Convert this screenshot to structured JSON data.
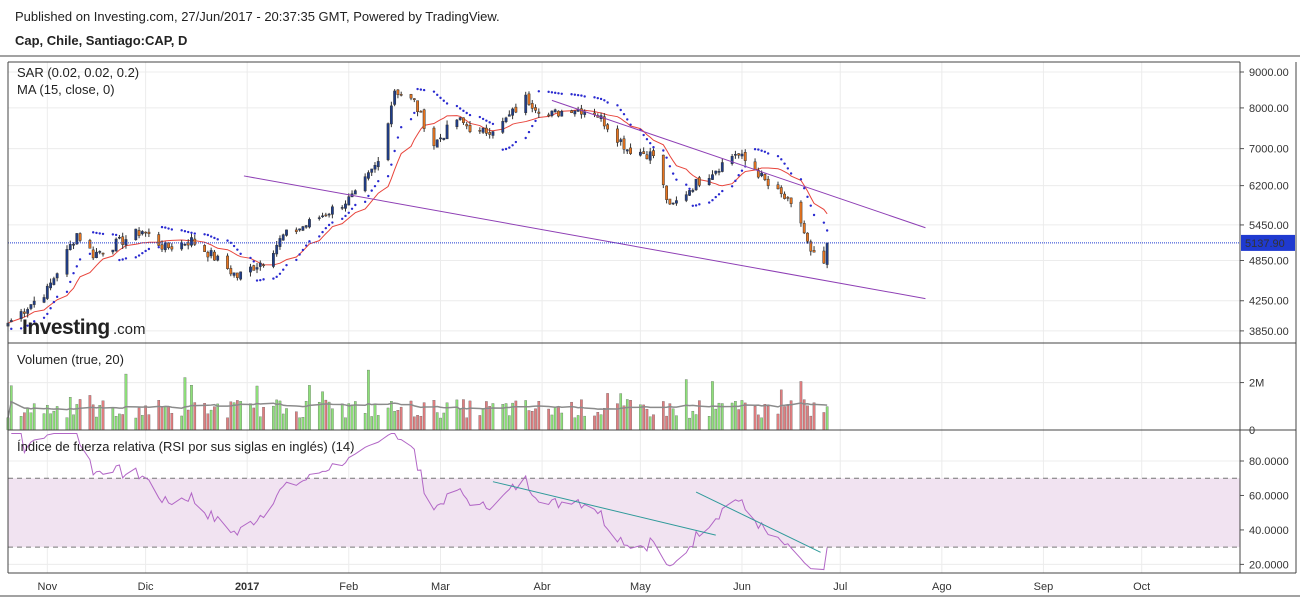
{
  "header": {
    "published": "Published on Investing.com, 27/Jun/2017 - 20:37:35 GMT, Powered by TradingView.",
    "symbol": "Cap, Chile, Santiago:CAP, D"
  },
  "watermark": {
    "brand": "Investing",
    "suffix": ".com"
  },
  "colors": {
    "up": "#1f3d8a",
    "down": "#e8741e",
    "sar": "#2a2ad0",
    "ma": "#e8453c",
    "channel": "#8e3fb5",
    "vol_up": "#8ee07a",
    "vol_down": "#e07e80",
    "vol_ma": "#8b8b8b",
    "rsi": "#b267c6",
    "rsi_band": "#f1e3f1",
    "trend": "#2f9a9a",
    "last_price_bg": "#1f3ad0"
  },
  "chart_data": [
    {
      "type": "candlestick",
      "title": "Cap, Chile, Santiago:CAP, D",
      "indicators": [
        "SAR (0.02, 0.02, 0.2)",
        "MA (15, close, 0)"
      ],
      "ylim": [
        3700,
        9300
      ],
      "scale": "log",
      "y_ticks": [
        {
          "v": 9000,
          "t": "9000.00"
        },
        {
          "v": 8000,
          "t": "8000.00"
        },
        {
          "v": 7000,
          "t": "7000.00"
        },
        {
          "v": 6200,
          "t": "6200.00"
        },
        {
          "v": 5450,
          "t": "5450.00"
        },
        {
          "v": 4850,
          "t": "4850.00"
        },
        {
          "v": 4250,
          "t": "4250.00"
        },
        {
          "v": 3850,
          "t": "3850.00"
        }
      ],
      "last_price": {
        "value": 5137.9,
        "label": "5137.90"
      },
      "x_axis": {
        "start": "2016-10-20",
        "end": "2017-10-31",
        "ticks": [
          {
            "date": "2016-11-01",
            "label": "Nov"
          },
          {
            "date": "2016-12-01",
            "label": "Dic"
          },
          {
            "date": "2017-01-01",
            "label": "2017"
          },
          {
            "date": "2017-02-01",
            "label": "Feb"
          },
          {
            "date": "2017-03-01",
            "label": "Mar"
          },
          {
            "date": "2017-04-01",
            "label": "Abr"
          },
          {
            "date": "2017-05-01",
            "label": "May"
          },
          {
            "date": "2017-06-01",
            "label": "Jun"
          },
          {
            "date": "2017-07-01",
            "label": "Jul"
          },
          {
            "date": "2017-08-01",
            "label": "Ago"
          },
          {
            "date": "2017-09-01",
            "label": "Sep"
          },
          {
            "date": "2017-10-01",
            "label": "Oct"
          }
        ]
      },
      "price_anchors": [
        {
          "date": "2016-10-20",
          "close": 3950
        },
        {
          "date": "2016-11-01",
          "close": 4400
        },
        {
          "date": "2016-11-10",
          "close": 5300
        },
        {
          "date": "2016-11-15",
          "close": 4950
        },
        {
          "date": "2016-11-23",
          "close": 5150
        },
        {
          "date": "2016-11-30",
          "close": 5350
        },
        {
          "date": "2016-12-07",
          "close": 5050
        },
        {
          "date": "2016-12-15",
          "close": 5180
        },
        {
          "date": "2016-12-22",
          "close": 4900
        },
        {
          "date": "2016-12-29",
          "close": 4600
        },
        {
          "date": "2017-01-06",
          "close": 4850
        },
        {
          "date": "2017-01-12",
          "close": 5250
        },
        {
          "date": "2017-01-19",
          "close": 5450
        },
        {
          "date": "2017-01-26",
          "close": 5700
        },
        {
          "date": "2017-02-03",
          "close": 6000
        },
        {
          "date": "2017-02-10",
          "close": 6700
        },
        {
          "date": "2017-02-15",
          "close": 8500
        },
        {
          "date": "2017-02-21",
          "close": 8150
        },
        {
          "date": "2017-02-27",
          "close": 7100
        },
        {
          "date": "2017-03-06",
          "close": 7700
        },
        {
          "date": "2017-03-13",
          "close": 7350
        },
        {
          "date": "2017-03-20",
          "close": 7600
        },
        {
          "date": "2017-03-27",
          "close": 8250
        },
        {
          "date": "2017-04-03",
          "close": 7800
        },
        {
          "date": "2017-04-10",
          "close": 8000
        },
        {
          "date": "2017-04-17",
          "close": 7900
        },
        {
          "date": "2017-04-21",
          "close": 7550
        },
        {
          "date": "2017-04-27",
          "close": 7000
        },
        {
          "date": "2017-05-05",
          "close": 6850
        },
        {
          "date": "2017-05-10",
          "close": 5750
        },
        {
          "date": "2017-05-17",
          "close": 6200
        },
        {
          "date": "2017-05-24",
          "close": 6550
        },
        {
          "date": "2017-05-30",
          "close": 6900
        },
        {
          "date": "2017-06-05",
          "close": 6550
        },
        {
          "date": "2017-06-09",
          "close": 6200
        },
        {
          "date": "2017-06-14",
          "close": 5950
        },
        {
          "date": "2017-06-19",
          "close": 5500
        },
        {
          "date": "2017-06-22",
          "close": 4950
        },
        {
          "date": "2017-06-26",
          "close": 4800
        },
        {
          "date": "2017-06-27",
          "close": 5137.9
        }
      ],
      "channel_lines": [
        {
          "from": {
            "date": "2017-04-04",
            "value": 8200
          },
          "to": {
            "date": "2017-07-27",
            "value": 5400
          }
        },
        {
          "from": {
            "date": "2016-12-31",
            "value": 6400
          },
          "to": {
            "date": "2017-07-27",
            "value": 4280
          }
        }
      ]
    },
    {
      "type": "bar",
      "title": "Volumen (true, 20)",
      "ylim": [
        0,
        3500000
      ],
      "y_ticks": [
        {
          "v": 2000000,
          "t": "2M"
        },
        {
          "v": 0,
          "t": "0"
        }
      ]
    },
    {
      "type": "line",
      "title": "Índice de fuerza relativa (RSI por sus siglas en inglés) (14)",
      "ylim": [
        15,
        98
      ],
      "band": [
        30,
        70
      ],
      "y_ticks": [
        {
          "v": 80,
          "t": "80.0000"
        },
        {
          "v": 60,
          "t": "60.0000"
        },
        {
          "v": 40,
          "t": "40.0000"
        },
        {
          "v": 20,
          "t": "20.0000"
        }
      ],
      "trend_lines": [
        {
          "from": {
            "date": "2017-03-17",
            "value": 68
          },
          "to": {
            "date": "2017-05-24",
            "value": 37
          }
        },
        {
          "from": {
            "date": "2017-05-18",
            "value": 62
          },
          "to": {
            "date": "2017-06-25",
            "value": 27
          }
        }
      ]
    }
  ]
}
